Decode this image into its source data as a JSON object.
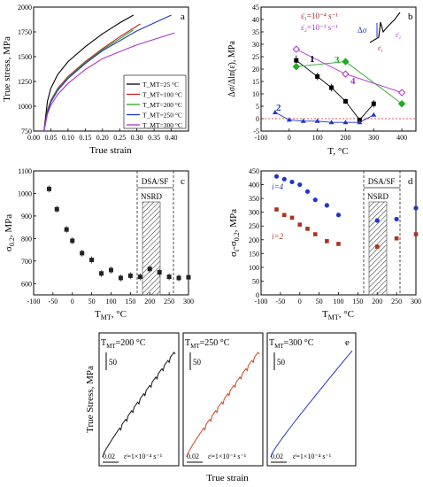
{
  "chart_data": [
    {
      "panel": "a",
      "type": "line",
      "xlabel": "True strain",
      "ylabel": "True stress, MPa",
      "xlim": [
        0.0,
        0.45
      ],
      "ylim": [
        750,
        2000
      ],
      "xticks": [
        "0.00",
        "0.05",
        "0.10",
        "0.15",
        "0.20",
        "0.25",
        "0.30",
        "0.35",
        "0.40"
      ],
      "yticks": [
        "750",
        "1000",
        "1250",
        "1500",
        "1750",
        "2000"
      ],
      "legend_position": "inside lower-right",
      "series": [
        {
          "name": "T_MT=25 °C",
          "color": "#000000",
          "x": [
            0.03,
            0.04,
            0.05,
            0.07,
            0.1,
            0.15,
            0.2,
            0.25,
            0.29
          ],
          "y": [
            750,
            1050,
            1180,
            1320,
            1450,
            1600,
            1730,
            1840,
            1920
          ]
        },
        {
          "name": "T_MT=100 °C",
          "color": "#cc2222",
          "x": [
            0.03,
            0.04,
            0.05,
            0.07,
            0.1,
            0.15,
            0.2,
            0.25,
            0.31
          ],
          "y": [
            750,
            960,
            1060,
            1180,
            1300,
            1450,
            1580,
            1700,
            1830
          ]
        },
        {
          "name": "T_MT=200 °C",
          "color": "#22aa22",
          "x": [
            0.03,
            0.04,
            0.05,
            0.07,
            0.1,
            0.15,
            0.2,
            0.25,
            0.29
          ],
          "y": [
            750,
            950,
            1050,
            1170,
            1290,
            1440,
            1570,
            1680,
            1770
          ]
        },
        {
          "name": "T_MT=250 °C",
          "color": "#2233cc",
          "x": [
            0.03,
            0.04,
            0.05,
            0.07,
            0.1,
            0.15,
            0.2,
            0.3,
            0.4
          ],
          "y": [
            750,
            940,
            1040,
            1160,
            1280,
            1430,
            1560,
            1760,
            1920
          ]
        },
        {
          "name": "T_MT=300 °C",
          "color": "#aa33cc",
          "x": [
            0.03,
            0.04,
            0.05,
            0.07,
            0.1,
            0.15,
            0.2,
            0.3,
            0.41
          ],
          "y": [
            750,
            920,
            1010,
            1120,
            1230,
            1370,
            1480,
            1620,
            1740
          ]
        }
      ]
    },
    {
      "panel": "b",
      "type": "line",
      "xlabel": "T, °C",
      "ylabel": "Δσ/Δln(ε̇), MPa",
      "xlim": [
        -100,
        450
      ],
      "ylim": [
        -5,
        45
      ],
      "xticks": [
        "-100",
        "0",
        "100",
        "200",
        "300",
        "400"
      ],
      "yticks": [
        "-5",
        "0",
        "5",
        "10",
        "15",
        "20",
        "25",
        "30",
        "35",
        "40",
        "45"
      ],
      "annotations": [
        "ε̇₁=10⁻⁴ s⁻¹",
        "ε̇₂=10⁻³ s⁻¹",
        "Δσ",
        "ε̇₁",
        "ε̇₂"
      ],
      "series": [
        {
          "name": "1",
          "color": "#000000",
          "marker": "square",
          "x": [
            25,
            100,
            150,
            200,
            250,
            300
          ],
          "y": [
            23.5,
            17,
            12.5,
            7,
            -0.5,
            6
          ],
          "err": [
            2,
            1.5,
            1.5,
            1,
            0.5,
            1.5
          ]
        },
        {
          "name": "2",
          "color": "#2233cc",
          "marker": "triangle",
          "x": [
            -50,
            0,
            50,
            100,
            150,
            200,
            250,
            300
          ],
          "y": [
            2.5,
            -0.5,
            -1,
            -1,
            -1.5,
            -1.5,
            -1.5,
            1.5
          ]
        },
        {
          "name": "3",
          "color": "#22aa22",
          "marker": "diamond",
          "x": [
            25,
            200,
            400
          ],
          "y": [
            21,
            23,
            6
          ]
        },
        {
          "name": "4",
          "color": "#aa33cc",
          "marker": "diamond-open",
          "x": [
            25,
            200,
            400
          ],
          "y": [
            28,
            18,
            10.5
          ]
        }
      ]
    },
    {
      "panel": "c",
      "type": "scatter",
      "xlabel": "T_MT, °C",
      "ylabel": "σ0.2, MPa",
      "xlim": [
        -100,
        300
      ],
      "ylim": [
        550,
        1100
      ],
      "xticks": [
        "-100",
        "-50",
        "0",
        "50",
        "100",
        "150",
        "200",
        "250",
        "300"
      ],
      "yticks": [
        "600",
        "700",
        "800",
        "900",
        "1000",
        "1100"
      ],
      "regions": {
        "dsa_sf": "DSA/SF",
        "nsrd": "NSRD"
      },
      "series": [
        {
          "name": "σ0.2",
          "color": "#222222",
          "x": [
            -60,
            -40,
            -15,
            0,
            25,
            50,
            75,
            100,
            125,
            150,
            175,
            200,
            225,
            250,
            275,
            300
          ],
          "y": [
            1020,
            930,
            840,
            790,
            735,
            705,
            645,
            660,
            625,
            635,
            630,
            665,
            650,
            630,
            625,
            628
          ]
        }
      ]
    },
    {
      "panel": "d",
      "type": "scatter",
      "xlabel": "T_MT, °C",
      "ylabel": "σ_i-σ0.2, MPa",
      "xlim": [
        -100,
        300
      ],
      "ylim": [
        0,
        450
      ],
      "xticks": [
        "-100",
        "-50",
        "0",
        "50",
        "100",
        "150",
        "200",
        "250",
        "300"
      ],
      "yticks": [
        "0",
        "50",
        "100",
        "150",
        "200",
        "250",
        "300",
        "350",
        "400",
        "450"
      ],
      "regions": {
        "dsa_sf": "DSA/SF",
        "nsrd": "NSRD"
      },
      "series": [
        {
          "name": "i=4",
          "color": "#2233cc",
          "x": [
            -60,
            -40,
            -20,
            0,
            20,
            40,
            70,
            100,
            200,
            250,
            300
          ],
          "y": [
            430,
            420,
            410,
            400,
            375,
            345,
            325,
            290,
            270,
            275,
            315
          ]
        },
        {
          "name": "i=2",
          "color": "#aa3322",
          "x": [
            -60,
            -40,
            -20,
            0,
            20,
            40,
            70,
            100,
            200,
            250,
            300
          ],
          "y": [
            310,
            290,
            280,
            255,
            240,
            220,
            195,
            185,
            175,
            205,
            220
          ]
        }
      ]
    },
    {
      "panel": "e",
      "type": "line",
      "xlabel": "True strain",
      "ylabel": "True Stress, MPa",
      "scale_labels": {
        "stress": "50",
        "strain": "0.02",
        "rate": "ε̇=1×10⁻⁴ s⁻¹"
      },
      "subpanels": [
        {
          "label": "T_MT=200 °C",
          "color": "#111111",
          "serrations": true
        },
        {
          "label": "T_MT=250 °C",
          "color": "#cc4422",
          "serrations": true
        },
        {
          "label": "T_MT=300 °C",
          "color": "#2233cc",
          "serrations": false
        }
      ]
    }
  ],
  "labels": {
    "a_tag": "a",
    "b_tag": "b",
    "c_tag": "c",
    "d_tag": "d",
    "e_tag": "e",
    "a_xlabel": "True strain",
    "a_ylabel": "True stress, MPa",
    "b_xlabel": "T, °C",
    "b_ylabel": "Δσ/Δln(ε̇), MPa",
    "c_xlabel": "T",
    "c_xsub": "MT",
    "c_xunit": ", °C",
    "c_ylabel": "σ",
    "c_ysub": "0.2",
    "c_yunit": ", MPa",
    "d_xlabel": "T",
    "d_xsub": "MT",
    "d_xunit": ", °C",
    "d_ylabel": "σ",
    "d_ysub_i": "i",
    "d_ymid": "-σ",
    "d_ysub2": "0.2",
    "d_yunit": ", MPa",
    "e_xlabel": "True strain",
    "e_ylabel": "True Stress, MPa",
    "dsa_sf": "DSA/SF",
    "nsrd": "NSRD",
    "i4": "i=4",
    "i2": "i=2",
    "b_rate1": "ε̇₁=10⁻⁴ s⁻¹",
    "b_rate2": "ε̇₂=10⁻³ s⁻¹",
    "b_dsigma": "Δσ",
    "b_e1": "ε̇₁",
    "b_e2": "ε̇₂",
    "b_s1": "1",
    "b_s2": "2",
    "b_s3": "3",
    "b_s4": "4",
    "e_t1": "T",
    "e_t1sub": "MT",
    "e_t1rest": "=200 °C",
    "e_t2": "T",
    "e_t2sub": "MT",
    "e_t2rest": "=250 °C",
    "e_t3": "T",
    "e_t3sub": "MT",
    "e_t3rest": "=300 °C",
    "e_stress": "50",
    "e_strain": "0.02",
    "e_rate": "ε̇=1×10⁻⁴ s⁻¹"
  }
}
